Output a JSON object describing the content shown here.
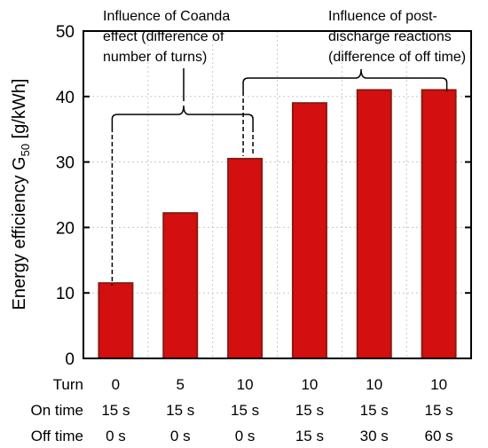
{
  "chart_data": {
    "type": "bar",
    "ylabel": {
      "pre": "Energy efficiency G",
      "sub": "50",
      "post": " [g/kWh]"
    },
    "ylim": [
      0,
      50
    ],
    "yticks": [
      0,
      10,
      20,
      30,
      40,
      50
    ],
    "grid": true,
    "values": [
      11.5,
      22.2,
      30.5,
      39.0,
      41.0,
      41.0
    ],
    "bar_color": "#d40f0f",
    "bar_edge_color": "#8a1a12",
    "rows": [
      {
        "label": "Turn",
        "values": [
          "0",
          "5",
          "10",
          "10",
          "10",
          "10"
        ]
      },
      {
        "label": "On time",
        "values": [
          "15 s",
          "15 s",
          "15 s",
          "15 s",
          "15 s",
          "15 s"
        ]
      },
      {
        "label": "Off time",
        "values": [
          "0 s",
          "0 s",
          "0 s",
          "15 s",
          "30 s",
          "60 s"
        ]
      }
    ],
    "annotations": [
      {
        "lines": [
          "Influence of Coanda",
          "effect (difference of",
          "number of turns)"
        ],
        "span": [
          0,
          2
        ]
      },
      {
        "lines": [
          "Influence of post-",
          "discharge reactions",
          "(difference of off time)"
        ],
        "span": [
          2,
          5
        ]
      }
    ]
  }
}
